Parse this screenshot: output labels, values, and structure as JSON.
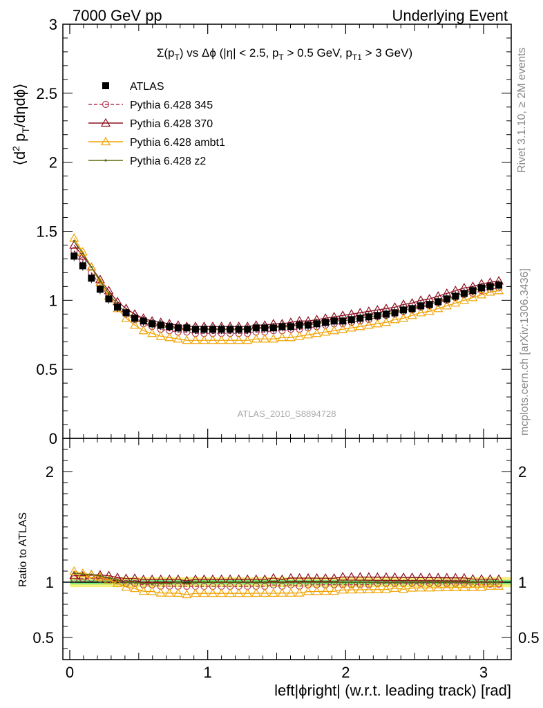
{
  "header": {
    "left": "7000 GeV pp",
    "right": "Underlying Event"
  },
  "side_labels": {
    "rivet": "Rivet 3.1.10, ≥ 2M events",
    "mcplots": "mcplots.cern.ch [arXiv:1306.3436]"
  },
  "chart_data": {
    "type": "scatter",
    "title_parts": {
      "a": "Σ(p",
      "a_sub": "T",
      "b": ") vs Δϕ (|η| < 2.5, p",
      "b_sub": "T",
      "c": " > 0.5 GeV, p",
      "c_sub": "T1",
      "d": " > 3 GeV)"
    },
    "ylabel_parts": {
      "a": "⟨d",
      "sup": "2",
      "b": " p",
      "sub": "T",
      "c": "/dηdϕ⟩"
    },
    "xlabel": "left|ϕright| (w.r.t. leading track) [rad]",
    "ratio_ylabel": "Ratio to ATLAS",
    "watermark": "ATLAS_2010_S8894728",
    "xlim": [
      -0.05,
      3.2
    ],
    "ylim": [
      0,
      3.0
    ],
    "ratio_ylim": [
      0.3,
      2.3
    ],
    "x_ticks": [
      "0",
      "1",
      "2",
      "3"
    ],
    "y_ticks": [
      "0.5",
      "1",
      "1.5",
      "2",
      "2.5",
      "3"
    ],
    "ratio_y_ticks": [
      "0.5",
      "1",
      "2"
    ],
    "ratio_y_ticks_right": [
      "0.5",
      "1",
      "2"
    ],
    "grid": false,
    "legend_position": "top-left",
    "x": [
      0.0314,
      0.0942,
      0.1571,
      0.2199,
      0.2827,
      0.3456,
      0.4084,
      0.4712,
      0.5341,
      0.5969,
      0.6597,
      0.7226,
      0.7854,
      0.8482,
      0.9111,
      0.9739,
      1.0367,
      1.0996,
      1.1624,
      1.2252,
      1.2881,
      1.3509,
      1.4137,
      1.4765,
      1.5394,
      1.6022,
      1.665,
      1.7279,
      1.7907,
      1.8535,
      1.9164,
      1.9792,
      2.042,
      2.1049,
      2.1677,
      2.2305,
      2.2934,
      2.3562,
      2.419,
      2.4819,
      2.5447,
      2.6075,
      2.6704,
      2.7332,
      2.796,
      2.8588,
      2.9217,
      2.9845,
      3.0473,
      3.1102
    ],
    "data": {
      "name": "ATLAS",
      "values": [
        1.32,
        1.25,
        1.16,
        1.08,
        1.01,
        0.95,
        0.91,
        0.87,
        0.85,
        0.83,
        0.82,
        0.81,
        0.8,
        0.8,
        0.79,
        0.79,
        0.79,
        0.79,
        0.79,
        0.79,
        0.79,
        0.8,
        0.8,
        0.8,
        0.81,
        0.81,
        0.82,
        0.82,
        0.83,
        0.84,
        0.85,
        0.85,
        0.86,
        0.87,
        0.88,
        0.89,
        0.9,
        0.91,
        0.93,
        0.94,
        0.96,
        0.97,
        0.99,
        1.01,
        1.03,
        1.05,
        1.07,
        1.09,
        1.1,
        1.11
      ]
    },
    "series": [
      {
        "name": "Pythia 6.428 345",
        "color": "#b23a54",
        "marker": "circle",
        "dashed": true,
        "values": [
          1.36,
          1.29,
          1.2,
          1.11,
          1.03,
          0.96,
          0.9,
          0.86,
          0.83,
          0.81,
          0.79,
          0.78,
          0.77,
          0.77,
          0.76,
          0.76,
          0.76,
          0.76,
          0.76,
          0.76,
          0.76,
          0.77,
          0.77,
          0.78,
          0.78,
          0.79,
          0.79,
          0.8,
          0.81,
          0.82,
          0.83,
          0.83,
          0.84,
          0.85,
          0.86,
          0.88,
          0.89,
          0.9,
          0.92,
          0.93,
          0.95,
          0.96,
          0.98,
          1.0,
          1.02,
          1.04,
          1.05,
          1.07,
          1.08,
          1.09
        ]
      },
      {
        "name": "Pythia 6.428 370",
        "color": "#8b0e1e",
        "marker": "triangle",
        "dashed": false,
        "values": [
          1.4,
          1.32,
          1.24,
          1.15,
          1.07,
          0.99,
          0.94,
          0.9,
          0.87,
          0.85,
          0.84,
          0.83,
          0.82,
          0.81,
          0.81,
          0.81,
          0.81,
          0.81,
          0.81,
          0.81,
          0.81,
          0.82,
          0.82,
          0.83,
          0.83,
          0.84,
          0.85,
          0.85,
          0.86,
          0.87,
          0.88,
          0.89,
          0.9,
          0.91,
          0.92,
          0.93,
          0.94,
          0.95,
          0.97,
          0.98,
          1.0,
          1.01,
          1.03,
          1.05,
          1.07,
          1.09,
          1.1,
          1.12,
          1.13,
          1.14
        ]
      },
      {
        "name": "Pythia 6.428 ambt1",
        "color": "#f0a202",
        "marker": "triangle",
        "dashed": false,
        "values": [
          1.45,
          1.35,
          1.24,
          1.13,
          1.03,
          0.94,
          0.87,
          0.82,
          0.78,
          0.76,
          0.74,
          0.73,
          0.72,
          0.71,
          0.71,
          0.71,
          0.71,
          0.71,
          0.71,
          0.71,
          0.71,
          0.72,
          0.72,
          0.72,
          0.73,
          0.73,
          0.74,
          0.75,
          0.76,
          0.77,
          0.78,
          0.79,
          0.8,
          0.81,
          0.82,
          0.83,
          0.84,
          0.86,
          0.87,
          0.89,
          0.91,
          0.92,
          0.94,
          0.96,
          0.98,
          1.0,
          1.02,
          1.04,
          1.06,
          1.07
        ]
      },
      {
        "name": "Pythia 6.428 z2",
        "color": "#5a6b0c",
        "marker": "dot",
        "dashed": false,
        "values": [
          1.43,
          1.34,
          1.24,
          1.14,
          1.05,
          0.97,
          0.91,
          0.87,
          0.84,
          0.82,
          0.81,
          0.8,
          0.8,
          0.79,
          0.79,
          0.79,
          0.79,
          0.79,
          0.79,
          0.79,
          0.79,
          0.8,
          0.8,
          0.8,
          0.81,
          0.81,
          0.82,
          0.82,
          0.83,
          0.84,
          0.85,
          0.85,
          0.86,
          0.87,
          0.88,
          0.89,
          0.9,
          0.91,
          0.93,
          0.94,
          0.96,
          0.97,
          0.99,
          1.01,
          1.03,
          1.05,
          1.07,
          1.09,
          1.1,
          1.11
        ]
      }
    ],
    "ratio_band": {
      "stat_color": "#7ce87c",
      "total_color": "#f5f07a",
      "stat_halfwidth": 0.02,
      "total_halfwidth": 0.045
    }
  }
}
